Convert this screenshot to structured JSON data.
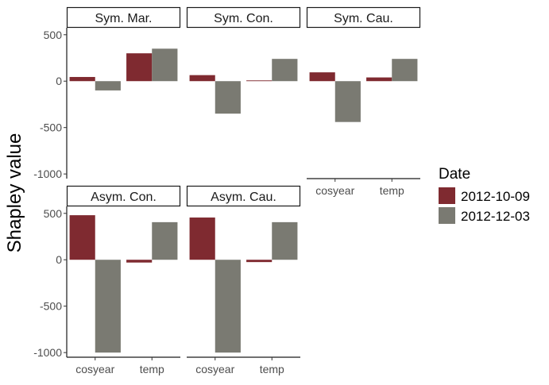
{
  "chart_data": {
    "type": "bar",
    "ylabel": "Shapley value",
    "ylim": [
      -1050,
      575
    ],
    "yticks": [
      500,
      0,
      -500,
      -1000
    ],
    "ytick_labels": [
      "500",
      "0",
      "-500",
      "-1000"
    ],
    "categories": [
      "cosyear",
      "temp"
    ],
    "legend": {
      "title": "Date",
      "position": "right"
    },
    "series": [
      {
        "name": "2012-10-09",
        "color": "#7f2a30"
      },
      {
        "name": "2012-12-03",
        "color": "#7a7a72"
      }
    ],
    "panels": [
      {
        "title": "Sym. Mar.",
        "values": {
          "2012-10-09": [
            45,
            300
          ],
          "2012-12-03": [
            -100,
            350
          ]
        }
      },
      {
        "title": "Sym. Con.",
        "values": {
          "2012-10-09": [
            65,
            8
          ],
          "2012-12-03": [
            -350,
            240
          ]
        }
      },
      {
        "title": "Sym. Cau.",
        "values": {
          "2012-10-09": [
            95,
            40
          ],
          "2012-12-03": [
            -440,
            240
          ]
        }
      },
      {
        "title": "Asym. Con.",
        "values": {
          "2012-10-09": [
            480,
            -30
          ],
          "2012-12-03": [
            -1000,
            405
          ]
        }
      },
      {
        "title": "Asym. Cau.",
        "values": {
          "2012-10-09": [
            455,
            -25
          ],
          "2012-12-03": [
            -1000,
            405
          ]
        }
      }
    ]
  }
}
